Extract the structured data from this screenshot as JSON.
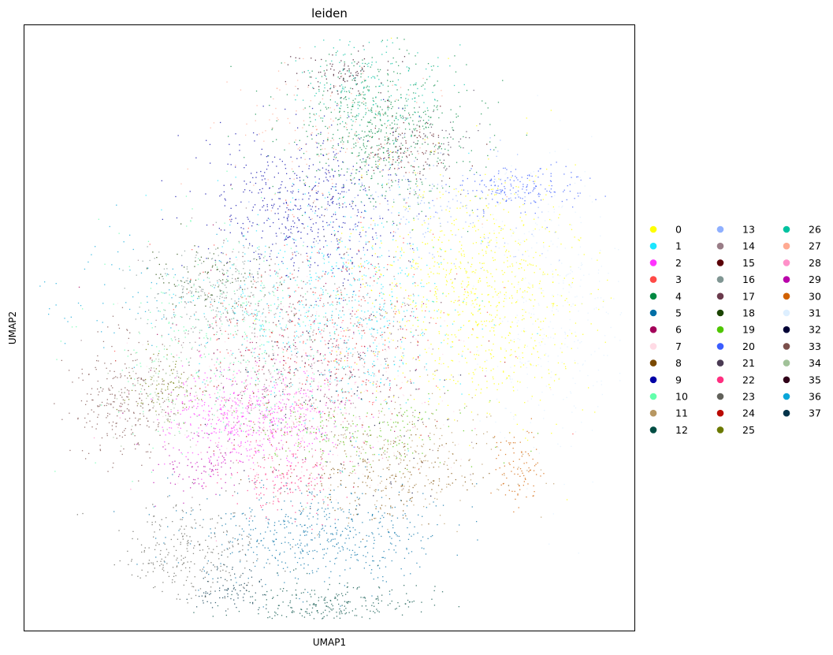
{
  "chart_data": {
    "type": "scatter",
    "title": "leiden",
    "xlabel": "UMAP1",
    "ylabel": "UMAP2",
    "xticks": [],
    "yticks": [],
    "grid": false,
    "legend": {
      "placement": "right",
      "columns": 3,
      "entries": [
        {
          "label": "0",
          "color": "#ffff00"
        },
        {
          "label": "1",
          "color": "#1ce6ff"
        },
        {
          "label": "2",
          "color": "#ff34ff"
        },
        {
          "label": "3",
          "color": "#ff4a46"
        },
        {
          "label": "4",
          "color": "#008941"
        },
        {
          "label": "5",
          "color": "#006fa6"
        },
        {
          "label": "6",
          "color": "#a30059"
        },
        {
          "label": "7",
          "color": "#ffdbe5"
        },
        {
          "label": "8",
          "color": "#7a4900"
        },
        {
          "label": "9",
          "color": "#0000a6"
        },
        {
          "label": "10",
          "color": "#63ffac"
        },
        {
          "label": "11",
          "color": "#b79762"
        },
        {
          "label": "12",
          "color": "#004d43"
        },
        {
          "label": "13",
          "color": "#8fb0ff"
        },
        {
          "label": "14",
          "color": "#997d87"
        },
        {
          "label": "15",
          "color": "#5a0007"
        },
        {
          "label": "16",
          "color": "#809693"
        },
        {
          "label": "17",
          "color": "#6a3a4c"
        },
        {
          "label": "18",
          "color": "#1b4400"
        },
        {
          "label": "19",
          "color": "#4fc601"
        },
        {
          "label": "20",
          "color": "#3b5dff"
        },
        {
          "label": "21",
          "color": "#4a3b53"
        },
        {
          "label": "22",
          "color": "#ff2f80"
        },
        {
          "label": "23",
          "color": "#61615a"
        },
        {
          "label": "24",
          "color": "#ba0900"
        },
        {
          "label": "25",
          "color": "#6b7900"
        },
        {
          "label": "26",
          "color": "#00c2a0"
        },
        {
          "label": "27",
          "color": "#ffaa92"
        },
        {
          "label": "28",
          "color": "#ff90c9"
        },
        {
          "label": "29",
          "color": "#b903aa"
        },
        {
          "label": "30",
          "color": "#d16100"
        },
        {
          "label": "31",
          "color": "#ddefff"
        },
        {
          "label": "32",
          "color": "#000035"
        },
        {
          "label": "33",
          "color": "#7b4f4b"
        },
        {
          "label": "34",
          "color": "#a1c299"
        },
        {
          "label": "35",
          "color": "#300018"
        },
        {
          "label": "36",
          "color": "#0aa6d8"
        },
        {
          "label": "37",
          "color": "#013349"
        }
      ]
    },
    "clusters": [
      {
        "label": "0",
        "center": [
          0.74,
          0.44
        ],
        "spread": [
          0.09,
          0.1
        ],
        "weight": 10
      },
      {
        "label": "1",
        "center": [
          0.52,
          0.47
        ],
        "spread": [
          0.1,
          0.09
        ],
        "weight": 7
      },
      {
        "label": "2",
        "center": [
          0.37,
          0.65
        ],
        "spread": [
          0.07,
          0.04
        ],
        "weight": 6
      },
      {
        "label": "3",
        "center": [
          0.5,
          0.5
        ],
        "spread": [
          0.11,
          0.08
        ],
        "weight": 3
      },
      {
        "label": "4",
        "center": [
          0.58,
          0.17
        ],
        "spread": [
          0.08,
          0.06
        ],
        "weight": 7
      },
      {
        "label": "5",
        "center": [
          0.48,
          0.84
        ],
        "spread": [
          0.1,
          0.04
        ],
        "weight": 6
      },
      {
        "label": "6",
        "center": [
          0.45,
          0.55
        ],
        "spread": [
          0.1,
          0.08
        ],
        "weight": 2
      },
      {
        "label": "7",
        "center": [
          0.47,
          0.57
        ],
        "spread": [
          0.12,
          0.09
        ],
        "weight": 3
      },
      {
        "label": "8",
        "center": [
          0.6,
          0.74
        ],
        "spread": [
          0.08,
          0.04
        ],
        "weight": 2
      },
      {
        "label": "9",
        "center": [
          0.46,
          0.3
        ],
        "spread": [
          0.08,
          0.06
        ],
        "weight": 6
      },
      {
        "label": "10",
        "center": [
          0.34,
          0.52
        ],
        "spread": [
          0.09,
          0.1
        ],
        "weight": 4
      },
      {
        "label": "11",
        "center": [
          0.6,
          0.72
        ],
        "spread": [
          0.09,
          0.05
        ],
        "weight": 3
      },
      {
        "label": "12",
        "center": [
          0.5,
          0.96
        ],
        "spread": [
          0.08,
          0.02
        ],
        "weight": 3
      },
      {
        "label": "13",
        "center": [
          0.66,
          0.3
        ],
        "spread": [
          0.1,
          0.05
        ],
        "weight": 2
      },
      {
        "label": "14",
        "center": [
          0.45,
          0.55
        ],
        "spread": [
          0.12,
          0.09
        ],
        "weight": 4
      },
      {
        "label": "15",
        "center": [
          0.63,
          0.2
        ],
        "spread": [
          0.04,
          0.03
        ],
        "weight": 1
      },
      {
        "label": "16",
        "center": [
          0.32,
          0.44
        ],
        "spread": [
          0.06,
          0.04
        ],
        "weight": 3
      },
      {
        "label": "17",
        "center": [
          0.49,
          0.5
        ],
        "spread": [
          0.1,
          0.08
        ],
        "weight": 2
      },
      {
        "label": "18",
        "center": [
          0.3,
          0.42
        ],
        "spread": [
          0.05,
          0.03
        ],
        "weight": 1
      },
      {
        "label": "19",
        "center": [
          0.55,
          0.67
        ],
        "spread": [
          0.09,
          0.03
        ],
        "weight": 2
      },
      {
        "label": "20",
        "center": [
          0.81,
          0.27
        ],
        "spread": [
          0.05,
          0.02
        ],
        "weight": 2
      },
      {
        "label": "21",
        "center": [
          0.66,
          0.2
        ],
        "spread": [
          0.04,
          0.03
        ],
        "weight": 1
      },
      {
        "label": "22",
        "center": [
          0.43,
          0.75
        ],
        "spread": [
          0.05,
          0.03
        ],
        "weight": 2
      },
      {
        "label": "23",
        "center": [
          0.28,
          0.87
        ],
        "spread": [
          0.06,
          0.04
        ],
        "weight": 3
      },
      {
        "label": "24",
        "center": [
          0.45,
          0.55
        ],
        "spread": [
          0.11,
          0.08
        ],
        "weight": 1
      },
      {
        "label": "25",
        "center": [
          0.23,
          0.6
        ],
        "spread": [
          0.03,
          0.03
        ],
        "weight": 1
      },
      {
        "label": "26",
        "center": [
          0.56,
          0.1
        ],
        "spread": [
          0.06,
          0.04
        ],
        "weight": 2
      },
      {
        "label": "27",
        "center": [
          0.5,
          0.18
        ],
        "spread": [
          0.09,
          0.06
        ],
        "weight": 2
      },
      {
        "label": "28",
        "center": [
          0.43,
          0.62
        ],
        "spread": [
          0.1,
          0.06
        ],
        "weight": 2
      },
      {
        "label": "29",
        "center": [
          0.3,
          0.73
        ],
        "spread": [
          0.04,
          0.02
        ],
        "weight": 1
      },
      {
        "label": "30",
        "center": [
          0.81,
          0.72
        ],
        "spread": [
          0.02,
          0.03
        ],
        "weight": 1
      },
      {
        "label": "31",
        "center": [
          0.86,
          0.48
        ],
        "spread": [
          0.06,
          0.12
        ],
        "weight": 4
      },
      {
        "label": "32",
        "center": [
          0.52,
          0.6
        ],
        "spread": [
          0.1,
          0.09
        ],
        "weight": 1
      },
      {
        "label": "33",
        "center": [
          0.16,
          0.62
        ],
        "spread": [
          0.04,
          0.05
        ],
        "weight": 3
      },
      {
        "label": "34",
        "center": [
          0.23,
          0.6
        ],
        "spread": [
          0.03,
          0.04
        ],
        "weight": 1
      },
      {
        "label": "35",
        "center": [
          0.52,
          0.08
        ],
        "spread": [
          0.04,
          0.02
        ],
        "weight": 1
      },
      {
        "label": "36",
        "center": [
          0.2,
          0.45
        ],
        "spread": [
          0.12,
          0.05
        ],
        "weight": 1
      },
      {
        "label": "37",
        "center": [
          0.34,
          0.93
        ],
        "spread": [
          0.03,
          0.02
        ],
        "weight": 1
      }
    ]
  }
}
